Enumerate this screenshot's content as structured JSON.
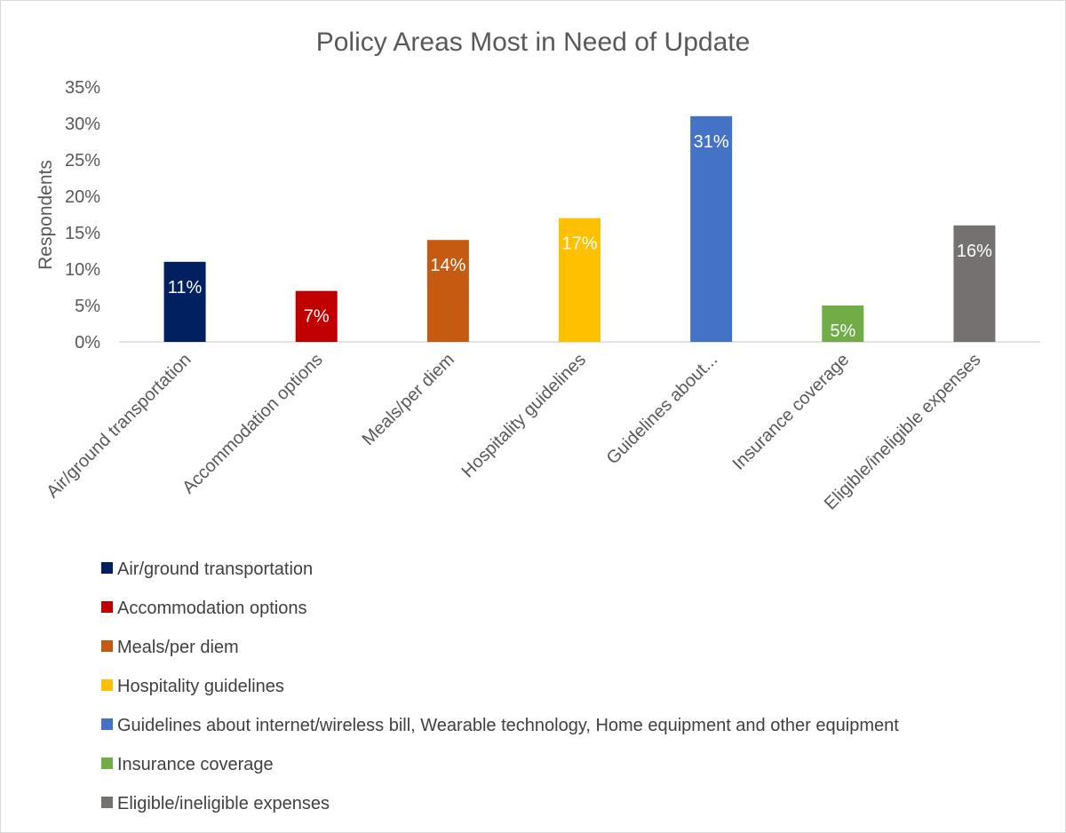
{
  "chart_data": {
    "type": "bar",
    "title": "Policy Areas Most in Need of Update",
    "ylabel": "Respondents",
    "xlabel": "",
    "ylim": [
      0,
      0.35
    ],
    "ytick_values": [
      0,
      0.05,
      0.1,
      0.15,
      0.2,
      0.25,
      0.3,
      0.35
    ],
    "yticks": [
      "0%",
      "5%",
      "10%",
      "15%",
      "20%",
      "25%",
      "30%",
      "35%"
    ],
    "grid": false,
    "legend_position": "bottom",
    "categories": [
      "Air/ground transportation",
      "Accommodation options",
      "Meals/per diem",
      "Hospitality guidelines",
      "Guidelines about internet/wireless bill, Wearable technology, Home equipment and other equipment",
      "Insurance coverage",
      "Eligible/ineligible expenses"
    ],
    "tick_labels": [
      "Air/ground transportation",
      "Accommodation options",
      "Meals/per diem",
      "Hospitality guidelines",
      "Guidelines about...",
      "Insurance coverage",
      "Eligible/ineligible expenses"
    ],
    "values": [
      0.11,
      0.07,
      0.14,
      0.17,
      0.31,
      0.05,
      0.16
    ],
    "data_labels": [
      "11%",
      "7%",
      "14%",
      "17%",
      "31%",
      "5%",
      "16%"
    ],
    "colors": [
      "#002060",
      "#c00000",
      "#c55a11",
      "#ffc000",
      "#4472c4",
      "#70ad47",
      "#767171"
    ]
  }
}
